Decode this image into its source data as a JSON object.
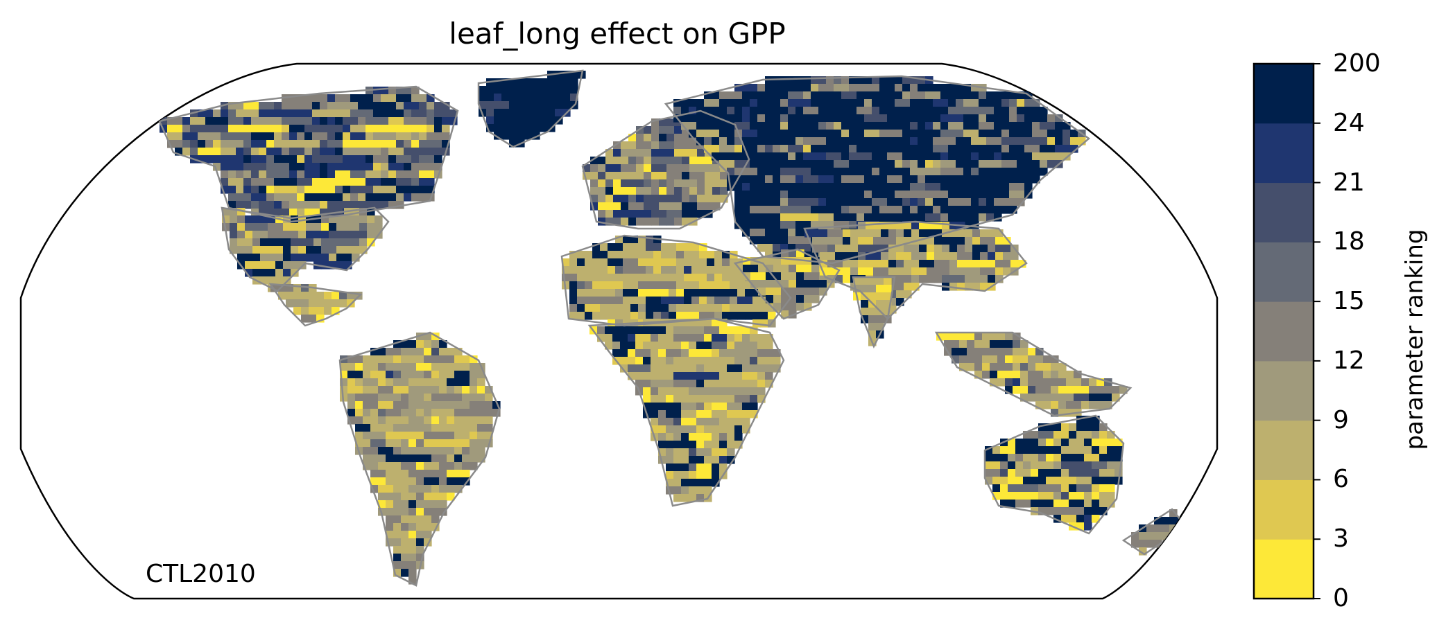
{
  "title": "leaf_long effect on GPP",
  "run_label": "CTL2010",
  "colorbar": {
    "label": "parameter ranking",
    "tick_labels": [
      "0",
      "3",
      "6",
      "9",
      "12",
      "15",
      "18",
      "21",
      "24",
      "200"
    ],
    "bins": [
      {
        "from": "0",
        "to": "3",
        "color": "#fde838"
      },
      {
        "from": "3",
        "to": "6",
        "color": "#dfc851"
      },
      {
        "from": "6",
        "to": "9",
        "color": "#bdb06e"
      },
      {
        "from": "9",
        "to": "12",
        "color": "#a09a7c"
      },
      {
        "from": "12",
        "to": "15",
        "color": "#858079"
      },
      {
        "from": "15",
        "to": "18",
        "color": "#646a76"
      },
      {
        "from": "18",
        "to": "21",
        "color": "#454f6c"
      },
      {
        "from": "21",
        "to": "24",
        "color": "#1f3670"
      },
      {
        "from": "24",
        "to": "200",
        "color": "#00204c"
      }
    ]
  },
  "coastline_color": "#8a8a8a",
  "regions": [
    {
      "name": "Greenland",
      "color": "#00204c"
    },
    {
      "name": "North America",
      "color": "#454f6c"
    },
    {
      "name": "Central America",
      "color": "#bdb06e"
    },
    {
      "name": "South America",
      "color": "#a09a7c"
    },
    {
      "name": "Europe",
      "color": "#646a76"
    },
    {
      "name": "Russia",
      "color": "#00204c"
    },
    {
      "name": "Sahara",
      "color": "#bdb06e"
    },
    {
      "name": "Africa",
      "color": "#bdb06e"
    },
    {
      "name": "Middle East",
      "color": "#858079"
    },
    {
      "name": "India",
      "color": "#bdb06e"
    },
    {
      "name": "Southeast Asia",
      "color": "#858079"
    },
    {
      "name": "Australia",
      "color": "#00204c"
    }
  ]
}
